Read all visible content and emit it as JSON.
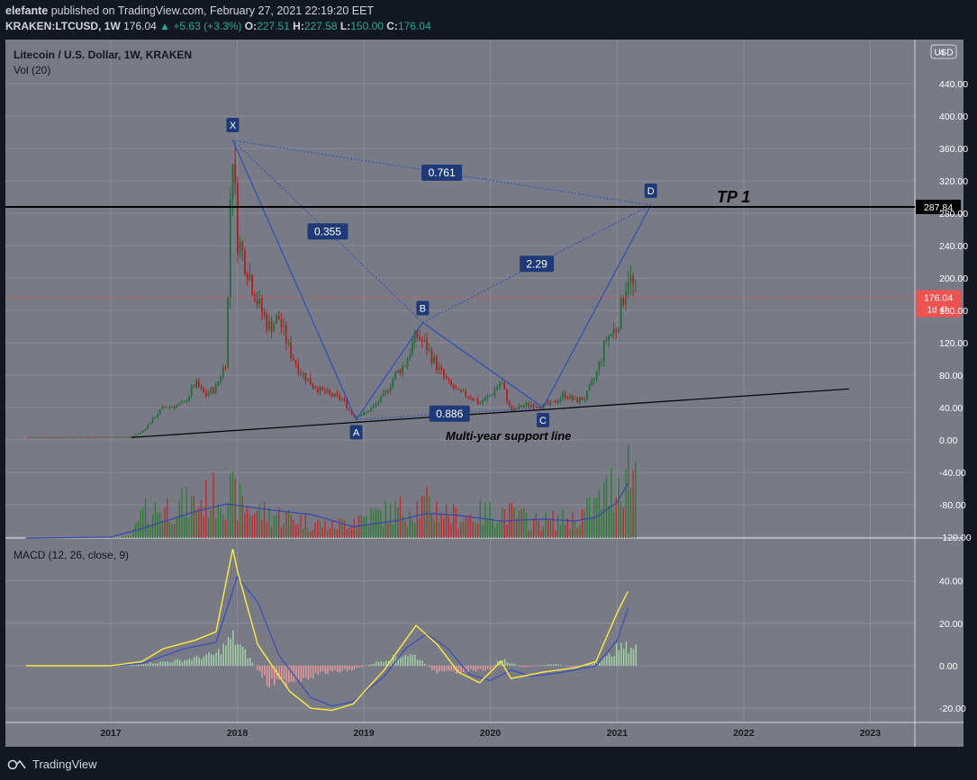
{
  "header": {
    "author": "elefante",
    "published_text": "published on TradingView.com, February 27, 2021 22:19:20 EET",
    "symbol": "KRAKEN:LTCUSD, 1W",
    "last": "176.04",
    "change": "▲ +5.63 (+3.3%)",
    "open_label": "O:",
    "open": "227.51",
    "high_label": "H:",
    "high": "227.58",
    "low_label": "L:",
    "low": "150.00",
    "close_label": "C:",
    "close": "176.04"
  },
  "chart_data": {
    "type": "candlestick",
    "title": "Litecoin / U.S. Dollar, 1W, KRAKEN",
    "volume_label": "Vol (20)",
    "macd_label": "MACD (12, 26, close, 9)",
    "currency_badge": "USD",
    "x_ticks": [
      "2017",
      "2018",
      "2019",
      "2020",
      "2021",
      "2022",
      "2023"
    ],
    "y_ticks": [
      "440.00",
      "400.00",
      "360.00",
      "320.00",
      "280.00",
      "240.00",
      "200.00",
      "160.00",
      "120.00",
      "80.00",
      "40.00",
      "0.00",
      "-40.00",
      "-80.00",
      "-120.00"
    ],
    "y_top_partial": "4",
    "macd_ticks": [
      "40.00",
      "20.00",
      "0.00",
      "-20.00"
    ],
    "ylim": [
      -120,
      460
    ],
    "macd_ylim": [
      -25,
      55
    ],
    "price_path": [
      [
        "2016-05",
        3.5
      ],
      [
        "2017-01",
        3.8
      ],
      [
        "2017-03",
        4
      ],
      [
        "2017-04",
        10
      ],
      [
        "2017-05",
        25
      ],
      [
        "2017-06",
        40
      ],
      [
        "2017-07",
        42
      ],
      [
        "2017-08",
        45
      ],
      [
        "2017-09",
        70
      ],
      [
        "2017-10",
        55
      ],
      [
        "2017-11",
        65
      ],
      [
        "2017-12",
        100
      ],
      [
        "2017-12-12",
        300
      ],
      [
        "2017-12-19",
        360
      ],
      [
        "2018-01",
        250
      ],
      [
        "2018-02",
        210
      ],
      [
        "2018-03",
        170
      ],
      [
        "2018-04",
        140
      ],
      [
        "2018-05",
        150
      ],
      [
        "2018-06",
        110
      ],
      [
        "2018-07",
        85
      ],
      [
        "2018-08",
        70
      ],
      [
        "2018-09",
        60
      ],
      [
        "2018-10",
        55
      ],
      [
        "2018-11",
        50
      ],
      [
        "2018-12",
        30
      ],
      [
        "2019-01",
        32
      ],
      [
        "2019-02",
        42
      ],
      [
        "2019-03",
        55
      ],
      [
        "2019-04",
        80
      ],
      [
        "2019-05",
        95
      ],
      [
        "2019-06",
        130
      ],
      [
        "2019-07",
        115
      ],
      [
        "2019-08",
        90
      ],
      [
        "2019-09",
        70
      ],
      [
        "2019-10",
        58
      ],
      [
        "2019-11",
        55
      ],
      [
        "2019-12",
        45
      ],
      [
        "2020-01",
        55
      ],
      [
        "2020-02",
        72
      ],
      [
        "2020-03",
        35
      ],
      [
        "2020-04",
        42
      ],
      [
        "2020-05",
        44
      ],
      [
        "2020-06",
        42
      ],
      [
        "2020-07",
        45
      ],
      [
        "2020-08",
        57
      ],
      [
        "2020-09",
        48
      ],
      [
        "2020-10",
        52
      ],
      [
        "2020-11",
        80
      ],
      [
        "2020-12",
        125
      ],
      [
        "2021-01",
        140
      ],
      [
        "2021-02",
        205
      ],
      [
        "2021-02-27",
        176
      ]
    ],
    "volume_path": [
      [
        "2016-05",
        0
      ],
      [
        "2017-01",
        1
      ],
      [
        "2017-03",
        2
      ],
      [
        "2017-04",
        25
      ],
      [
        "2017-06",
        32
      ],
      [
        "2017-09",
        36
      ],
      [
        "2017-12",
        50
      ],
      [
        "2018-02",
        30
      ],
      [
        "2018-06",
        22
      ],
      [
        "2018-10",
        12
      ],
      [
        "2018-12",
        20
      ],
      [
        "2019-04",
        28
      ],
      [
        "2019-07",
        35
      ],
      [
        "2019-10",
        22
      ],
      [
        "2020-02",
        28
      ],
      [
        "2020-05",
        18
      ],
      [
        "2020-09",
        20
      ],
      [
        "2020-11",
        35
      ],
      [
        "2021-01",
        60
      ],
      [
        "2021-02",
        75
      ]
    ],
    "volume_ma_path": [
      [
        "2016-05",
        0
      ],
      [
        "2017-01",
        1
      ],
      [
        "2017-04",
        10
      ],
      [
        "2017-09",
        28
      ],
      [
        "2017-12",
        36
      ],
      [
        "2018-04",
        30
      ],
      [
        "2018-08",
        25
      ],
      [
        "2018-12",
        12
      ],
      [
        "2019-04",
        18
      ],
      [
        "2019-07",
        26
      ],
      [
        "2019-10",
        24
      ],
      [
        "2020-02",
        18
      ],
      [
        "2020-06",
        20
      ],
      [
        "2020-09",
        18
      ],
      [
        "2020-11",
        22
      ],
      [
        "2021-01",
        38
      ],
      [
        "2021-02",
        58
      ]
    ],
    "macd_line": [
      [
        "2016-05",
        0
      ],
      [
        "2017-01",
        0
      ],
      [
        "2017-04",
        2
      ],
      [
        "2017-06",
        8
      ],
      [
        "2017-09",
        12
      ],
      [
        "2017-11",
        16
      ],
      [
        "2017-12-19",
        55
      ],
      [
        "2018-01",
        45
      ],
      [
        "2018-03",
        10
      ],
      [
        "2018-06",
        -12
      ],
      [
        "2018-08",
        -20
      ],
      [
        "2018-10",
        -21
      ],
      [
        "2018-12",
        -18
      ],
      [
        "2019-03",
        -2
      ],
      [
        "2019-05",
        12
      ],
      [
        "2019-06",
        19
      ],
      [
        "2019-08",
        10
      ],
      [
        "2019-10",
        -3
      ],
      [
        "2019-12",
        -8
      ],
      [
        "2020-02",
        2
      ],
      [
        "2020-03",
        -6
      ],
      [
        "2020-06",
        -3
      ],
      [
        "2020-09",
        -1
      ],
      [
        "2020-11",
        2
      ],
      [
        "2021-01",
        25
      ],
      [
        "2021-02",
        35
      ]
    ],
    "signal_line": [
      [
        "2016-05",
        0
      ],
      [
        "2017-01",
        0
      ],
      [
        "2017-04",
        1
      ],
      [
        "2017-08",
        8
      ],
      [
        "2017-11",
        11
      ],
      [
        "2018-01",
        42
      ],
      [
        "2018-03",
        30
      ],
      [
        "2018-05",
        5
      ],
      [
        "2018-08",
        -15
      ],
      [
        "2018-10",
        -19
      ],
      [
        "2018-12",
        -17
      ],
      [
        "2019-03",
        -5
      ],
      [
        "2019-05",
        8
      ],
      [
        "2019-07",
        15
      ],
      [
        "2019-09",
        8
      ],
      [
        "2019-11",
        -4
      ],
      [
        "2020-01",
        -7
      ],
      [
        "2020-03",
        -2
      ],
      [
        "2020-05",
        -5
      ],
      [
        "2020-08",
        -3
      ],
      [
        "2020-11",
        0
      ],
      [
        "2021-01",
        12
      ],
      [
        "2021-02",
        27
      ]
    ],
    "macd_hist": [
      [
        "2017-04",
        1
      ],
      [
        "2017-08",
        3
      ],
      [
        "2017-11",
        6
      ],
      [
        "2017-12-19",
        15
      ],
      [
        "2018-02",
        5
      ],
      [
        "2018-04",
        -10
      ],
      [
        "2018-06",
        -8
      ],
      [
        "2018-09",
        -4
      ],
      [
        "2018-12",
        -2
      ],
      [
        "2019-03",
        3
      ],
      [
        "2019-05",
        6
      ],
      [
        "2019-06",
        5
      ],
      [
        "2019-08",
        -4
      ],
      [
        "2019-10",
        -3
      ],
      [
        "2020-01",
        -2
      ],
      [
        "2020-02",
        4
      ],
      [
        "2020-04",
        -1
      ],
      [
        "2020-07",
        1
      ],
      [
        "2020-09",
        -1
      ],
      [
        "2020-12",
        4
      ],
      [
        "2021-01",
        9
      ],
      [
        "2021-02",
        10
      ]
    ],
    "pattern_points": [
      {
        "label": "X",
        "date": "2017-12-19",
        "price": 370
      },
      {
        "label": "A",
        "date": "2018-12-10",
        "price": 25
      },
      {
        "label": "B",
        "date": "2019-06-20",
        "price": 145
      },
      {
        "label": "C",
        "date": "2020-06-01",
        "price": 40
      },
      {
        "label": "D",
        "date": "2021-04-08",
        "price": 290
      }
    ],
    "ratio_labels": [
      {
        "text": "0.761",
        "between": "XA-AD"
      },
      {
        "text": "0.355",
        "between": "XA-B"
      },
      {
        "text": "2.29",
        "between": "BC-D"
      },
      {
        "text": "0.886",
        "between": "AB-C"
      }
    ],
    "support_line": [
      [
        "2017-03",
        3
      ],
      [
        "2022-11",
        63
      ]
    ],
    "horizontal_level": "287.84",
    "last_price_label": "176.04",
    "countdown_label": "1d 4h",
    "annotations": [
      "TP 1",
      "Multi-year support line"
    ],
    "colors": {
      "background": "#131722",
      "chart_bg": "#787b86",
      "up": "#26a69a",
      "down": "#ef5350",
      "pattern": "#2962ff",
      "macd": "#ffeb3b",
      "signal": "#3f51b5",
      "label_bg": "#1e3a78",
      "last_price_bg": "#ef5350"
    }
  },
  "footer": {
    "brand": "TradingView"
  }
}
